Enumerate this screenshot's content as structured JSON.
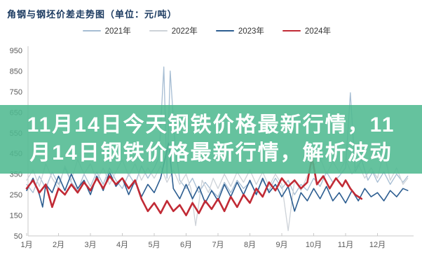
{
  "page": {
    "background": "#ffffff"
  },
  "overlay": {
    "line1": "11月14日今天钢铁价格最新行情，11",
    "line2": "月14日钢铁价格最新行情，解析波动",
    "full_text": "11月14日今天钢铁价格最新行情，11月14日钢铁价格最新行情，解析波动",
    "band_color": "rgba(80,185,145,0.88)",
    "text_color": "#ffffff"
  },
  "chart_data": {
    "type": "line",
    "title": "角钢与钢坯价差走势图（单位：元/吨）",
    "unit": "元/吨",
    "xlabel": "",
    "ylabel": "",
    "grid": false,
    "legend_position": "top-right",
    "x_ticks": [
      "1月",
      "2月",
      "3月",
      "4月",
      "5月",
      "6月",
      "7月",
      "8月",
      "9月",
      "10月",
      "11月",
      "12月"
    ],
    "y_ticks": [
      950,
      850,
      750,
      650,
      550,
      450,
      350,
      250,
      150,
      50
    ],
    "ylim": [
      50,
      950
    ],
    "xlim_months": [
      1,
      13.1
    ],
    "axis_color": "#c9c9c9",
    "series": [
      {
        "name": "2021年",
        "color": "#a6bdd3",
        "width": 1.3,
        "points": [
          [
            1.0,
            300
          ],
          [
            1.2,
            260
          ],
          [
            1.4,
            340
          ],
          [
            1.6,
            280
          ],
          [
            1.8,
            360
          ],
          [
            2.0,
            300
          ],
          [
            2.2,
            380
          ],
          [
            2.4,
            310
          ],
          [
            2.6,
            270
          ],
          [
            2.8,
            350
          ],
          [
            3.0,
            290
          ],
          [
            3.2,
            360
          ],
          [
            3.4,
            300
          ],
          [
            3.6,
            380
          ],
          [
            3.8,
            320
          ],
          [
            4.0,
            280
          ],
          [
            4.2,
            350
          ],
          [
            4.4,
            300
          ],
          [
            4.6,
            390
          ],
          [
            4.8,
            330
          ],
          [
            5.0,
            380
          ],
          [
            5.15,
            430
          ],
          [
            5.3,
            870
          ],
          [
            5.4,
            330
          ],
          [
            5.5,
            850
          ],
          [
            5.65,
            500
          ],
          [
            5.8,
            320
          ],
          [
            6.0,
            280
          ],
          [
            6.2,
            330
          ],
          [
            6.4,
            260
          ],
          [
            6.6,
            310
          ],
          [
            6.8,
            270
          ],
          [
            7.0,
            240
          ],
          [
            7.2,
            310
          ],
          [
            7.4,
            260
          ],
          [
            7.6,
            320
          ],
          [
            7.8,
            280
          ],
          [
            8.0,
            310
          ],
          [
            8.2,
            260
          ],
          [
            8.4,
            320
          ],
          [
            8.6,
            270
          ],
          [
            8.8,
            330
          ],
          [
            9.0,
            280
          ],
          [
            9.2,
            320
          ],
          [
            9.4,
            250
          ],
          [
            9.6,
            300
          ],
          [
            9.8,
            270
          ],
          [
            10.0,
            330
          ],
          [
            10.2,
            290
          ],
          [
            10.4,
            360
          ],
          [
            10.6,
            310
          ],
          [
            10.8,
            340
          ],
          [
            11.0,
            380
          ],
          [
            11.15,
            745
          ],
          [
            11.3,
            360
          ],
          [
            11.5,
            420
          ],
          [
            11.7,
            320
          ],
          [
            11.85,
            360
          ],
          [
            12.0,
            310
          ],
          [
            12.2,
            360
          ],
          [
            12.4,
            300
          ],
          [
            12.6,
            350
          ],
          [
            12.8,
            310
          ],
          [
            12.95,
            340
          ]
        ]
      },
      {
        "name": "2022年",
        "color": "#cdd2d8",
        "width": 1.3,
        "points": [
          [
            1.0,
            320
          ],
          [
            1.2,
            370
          ],
          [
            1.4,
            290
          ],
          [
            1.6,
            400
          ],
          [
            1.8,
            330
          ],
          [
            2.0,
            280
          ],
          [
            2.2,
            390
          ],
          [
            2.4,
            320
          ],
          [
            2.6,
            420
          ],
          [
            2.8,
            350
          ],
          [
            3.0,
            400
          ],
          [
            3.2,
            320
          ],
          [
            3.4,
            380
          ],
          [
            3.6,
            300
          ],
          [
            3.8,
            360
          ],
          [
            4.0,
            420
          ],
          [
            4.2,
            340
          ],
          [
            4.4,
            400
          ],
          [
            4.6,
            320
          ],
          [
            4.8,
            380
          ],
          [
            5.0,
            330
          ],
          [
            5.2,
            390
          ],
          [
            5.4,
            310
          ],
          [
            5.6,
            370
          ],
          [
            5.8,
            300
          ],
          [
            6.0,
            350
          ],
          [
            6.15,
            280
          ],
          [
            6.3,
            100
          ],
          [
            6.5,
            320
          ],
          [
            6.7,
            260
          ],
          [
            6.85,
            330
          ],
          [
            7.0,
            280
          ],
          [
            7.2,
            350
          ],
          [
            7.4,
            290
          ],
          [
            7.6,
            360
          ],
          [
            7.8,
            310
          ],
          [
            8.0,
            370
          ],
          [
            8.2,
            300
          ],
          [
            8.4,
            360
          ],
          [
            8.6,
            290
          ],
          [
            8.8,
            350
          ],
          [
            9.0,
            300
          ],
          [
            9.2,
            75
          ],
          [
            9.4,
            320
          ],
          [
            9.6,
            270
          ],
          [
            9.8,
            340
          ],
          [
            10.0,
            390
          ],
          [
            10.2,
            430
          ],
          [
            10.4,
            350
          ],
          [
            10.6,
            410
          ],
          [
            10.8,
            360
          ],
          [
            11.0,
            420
          ],
          [
            11.2,
            350
          ],
          [
            11.4,
            400
          ],
          [
            11.6,
            330
          ],
          [
            11.8,
            380
          ],
          [
            12.0,
            330
          ],
          [
            12.2,
            460
          ],
          [
            12.4,
            320
          ],
          [
            12.6,
            380
          ],
          [
            12.8,
            300
          ],
          [
            12.95,
            330
          ]
        ]
      },
      {
        "name": "2023年",
        "color": "#2d5e91",
        "width": 1.6,
        "points": [
          [
            1.0,
            270
          ],
          [
            1.2,
            330
          ],
          [
            1.4,
            250
          ],
          [
            1.5,
            190
          ],
          [
            1.6,
            300
          ],
          [
            1.8,
            260
          ],
          [
            2.0,
            340
          ],
          [
            2.2,
            270
          ],
          [
            2.4,
            350
          ],
          [
            2.6,
            280
          ],
          [
            2.8,
            320
          ],
          [
            3.0,
            250
          ],
          [
            3.2,
            340
          ],
          [
            3.4,
            270
          ],
          [
            3.6,
            360
          ],
          [
            3.8,
            290
          ],
          [
            4.0,
            330
          ],
          [
            4.2,
            250
          ],
          [
            4.4,
            320
          ],
          [
            4.6,
            240
          ],
          [
            4.8,
            300
          ],
          [
            5.0,
            260
          ],
          [
            5.2,
            330
          ],
          [
            5.45,
            500
          ],
          [
            5.6,
            280
          ],
          [
            5.8,
            230
          ],
          [
            6.0,
            300
          ],
          [
            6.2,
            230
          ],
          [
            6.4,
            290
          ],
          [
            6.6,
            210
          ],
          [
            6.8,
            270
          ],
          [
            7.0,
            220
          ],
          [
            7.2,
            300
          ],
          [
            7.4,
            240
          ],
          [
            7.6,
            310
          ],
          [
            7.8,
            250
          ],
          [
            8.0,
            320
          ],
          [
            8.2,
            250
          ],
          [
            8.4,
            330
          ],
          [
            8.6,
            260
          ],
          [
            8.8,
            300
          ],
          [
            9.0,
            240
          ],
          [
            9.2,
            290
          ],
          [
            9.4,
            170
          ],
          [
            9.6,
            260
          ],
          [
            9.8,
            220
          ],
          [
            10.0,
            280
          ],
          [
            10.2,
            230
          ],
          [
            10.4,
            290
          ],
          [
            10.6,
            220
          ],
          [
            10.8,
            260
          ],
          [
            11.0,
            210
          ],
          [
            11.2,
            270
          ],
          [
            11.4,
            220
          ],
          [
            11.6,
            280
          ],
          [
            11.8,
            240
          ],
          [
            12.0,
            260
          ],
          [
            12.2,
            220
          ],
          [
            12.4,
            270
          ],
          [
            12.6,
            240
          ],
          [
            12.8,
            280
          ],
          [
            12.95,
            270
          ]
        ]
      },
      {
        "name": "2024年",
        "color": "#c12a35",
        "width": 2.6,
        "points": [
          [
            1.0,
            280
          ],
          [
            1.2,
            320
          ],
          [
            1.4,
            260
          ],
          [
            1.6,
            300
          ],
          [
            1.8,
            190
          ],
          [
            2.0,
            280
          ],
          [
            2.2,
            250
          ],
          [
            2.4,
            300
          ],
          [
            2.6,
            260
          ],
          [
            2.8,
            310
          ],
          [
            3.0,
            270
          ],
          [
            3.2,
            330
          ],
          [
            3.4,
            280
          ],
          [
            3.6,
            340
          ],
          [
            3.8,
            300
          ],
          [
            4.0,
            330
          ],
          [
            4.2,
            280
          ],
          [
            4.4,
            320
          ],
          [
            4.6,
            230
          ],
          [
            4.8,
            170
          ],
          [
            5.0,
            210
          ],
          [
            5.2,
            160
          ],
          [
            5.4,
            220
          ],
          [
            5.6,
            170
          ],
          [
            5.8,
            200
          ],
          [
            6.0,
            150
          ],
          [
            6.2,
            210
          ],
          [
            6.4,
            160
          ],
          [
            6.6,
            220
          ],
          [
            6.8,
            180
          ],
          [
            7.0,
            230
          ],
          [
            7.2,
            170
          ],
          [
            7.4,
            240
          ],
          [
            7.6,
            190
          ],
          [
            7.8,
            250
          ],
          [
            8.0,
            210
          ],
          [
            8.2,
            280
          ],
          [
            8.4,
            240
          ],
          [
            8.6,
            310
          ],
          [
            8.8,
            270
          ],
          [
            9.0,
            330
          ],
          [
            9.2,
            290
          ],
          [
            9.4,
            320
          ],
          [
            9.6,
            280
          ],
          [
            9.8,
            310
          ],
          [
            9.95,
            430
          ],
          [
            10.1,
            300
          ],
          [
            10.3,
            340
          ],
          [
            10.5,
            280
          ],
          [
            10.7,
            330
          ],
          [
            10.9,
            290
          ],
          [
            11.0,
            320
          ],
          [
            11.15,
            280
          ],
          [
            11.3,
            250
          ],
          [
            11.5,
            230
          ]
        ]
      }
    ]
  }
}
